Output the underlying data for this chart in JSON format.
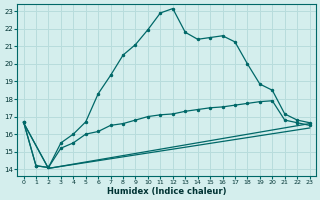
{
  "xlabel": "Humidex (Indice chaleur)",
  "background_color": "#d4eeed",
  "grid_color": "#b8dcdc",
  "line_color": "#006868",
  "xlim": [
    -0.5,
    23.5
  ],
  "ylim": [
    13.6,
    23.4
  ],
  "xticks": [
    0,
    1,
    2,
    3,
    4,
    5,
    6,
    7,
    8,
    9,
    10,
    11,
    12,
    13,
    14,
    15,
    16,
    17,
    18,
    19,
    20,
    21,
    22,
    23
  ],
  "yticks": [
    14,
    15,
    16,
    17,
    18,
    19,
    20,
    21,
    22,
    23
  ],
  "curve1_x": [
    0,
    1,
    2,
    3,
    4,
    5,
    6,
    7,
    8,
    9,
    10,
    11,
    12,
    13,
    14,
    15,
    16,
    17,
    18,
    19,
    20,
    21,
    22,
    23
  ],
  "curve1_y": [
    16.7,
    14.2,
    14.1,
    15.5,
    16.0,
    16.7,
    18.3,
    19.35,
    20.5,
    21.1,
    21.95,
    22.9,
    23.15,
    21.8,
    21.4,
    21.5,
    21.6,
    21.25,
    20.0,
    18.85,
    18.5,
    17.15,
    16.8,
    16.65
  ],
  "curve2_x": [
    0,
    1,
    2,
    3,
    4,
    5,
    6,
    7,
    8,
    9,
    10,
    11,
    12,
    13,
    14,
    15,
    16,
    17,
    18,
    19,
    20,
    21,
    22,
    23
  ],
  "curve2_y": [
    16.7,
    14.2,
    14.1,
    15.2,
    15.5,
    16.0,
    16.15,
    16.5,
    16.6,
    16.8,
    17.0,
    17.1,
    17.15,
    17.3,
    17.4,
    17.5,
    17.55,
    17.65,
    17.75,
    17.85,
    17.9,
    16.8,
    16.65,
    16.5
  ],
  "line3_x": [
    0,
    2,
    23
  ],
  "line3_y": [
    16.65,
    14.05,
    16.6
  ],
  "line4_x": [
    0,
    2,
    23
  ],
  "line4_y": [
    16.65,
    14.05,
    16.35
  ]
}
